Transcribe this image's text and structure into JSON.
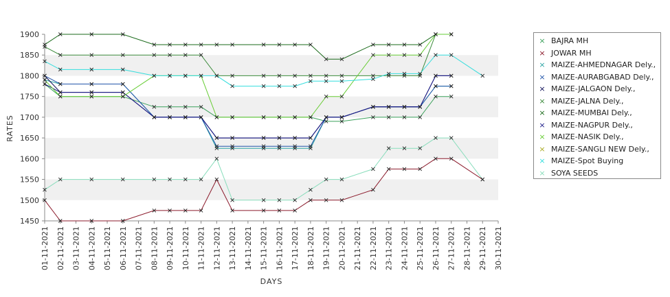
{
  "chart_data": {
    "type": "line",
    "xlabel": "DAYS",
    "ylabel": "RATES",
    "ylim": [
      1450,
      1900
    ],
    "yticks": [
      1450,
      1500,
      1550,
      1600,
      1650,
      1700,
      1750,
      1800,
      1850,
      1900
    ],
    "grid": "alternating horizontal bands",
    "legend_position": "right",
    "marker": "x",
    "categories": [
      "01-11-2021",
      "02-11-2021",
      "03-11-2021",
      "04-11-2021",
      "05-11-2021",
      "06-11-2021",
      "07-11-2021",
      "08-11-2021",
      "09-11-2021",
      "10-11-2021",
      "11-11-2021",
      "12-11-2021",
      "13-11-2021",
      "14-11-2021",
      "15-11-2021",
      "16-11-2021",
      "17-11-2021",
      "18-11-2021",
      "19-11-2021",
      "20-11-2021",
      "21-11-2021",
      "22-11-2021",
      "23-11-2021",
      "24-11-2021",
      "25-11-2021",
      "26-11-2021",
      "27-11-2021",
      "28-11-2021",
      "29-11-2021",
      "30-11-2021"
    ],
    "series": [
      {
        "name": "BAJRA MH",
        "color": "#3aa05a",
        "values": [
          1780,
          1750,
          null,
          1750,
          null,
          1750,
          null,
          1725,
          1725,
          1725,
          1725,
          1700,
          1700,
          null,
          1700,
          1700,
          1700,
          1700,
          1690,
          1690,
          null,
          1700,
          1700,
          1700,
          1700,
          1750,
          1750,
          null,
          null,
          null
        ]
      },
      {
        "name": "JOWAR MH",
        "color": "#8b1a2b",
        "values": [
          1500,
          1450,
          null,
          1450,
          null,
          1450,
          null,
          1475,
          1475,
          1475,
          1475,
          1550,
          1475,
          null,
          1475,
          1475,
          1475,
          1500,
          1500,
          1500,
          null,
          1525,
          1575,
          1575,
          1575,
          1600,
          1600,
          null,
          1550,
          null
        ]
      },
      {
        "name": "MAIZE-AHMEDNAGAR Dely.,",
        "color": "#2aa3a3",
        "values": [
          1790,
          1780,
          null,
          1780,
          null,
          1780,
          null,
          1700,
          1700,
          1700,
          1700,
          1625,
          1625,
          null,
          1625,
          1625,
          1625,
          1625,
          1700,
          1700,
          null,
          1725,
          1725,
          1725,
          1725,
          1775,
          1775,
          null,
          null,
          null
        ]
      },
      {
        "name": "MAIZE-AURABGABAD Dely.,",
        "color": "#2255aa",
        "values": [
          1800,
          1780,
          null,
          1780,
          null,
          1780,
          null,
          1700,
          1700,
          1700,
          1700,
          1630,
          1630,
          null,
          1630,
          1630,
          1630,
          1630,
          1700,
          1700,
          null,
          1725,
          1725,
          1725,
          1725,
          1775,
          1775,
          null,
          null,
          null
        ]
      },
      {
        "name": "MAIZE-JALGAON Dely.,",
        "color": "#0a0a55",
        "values": [
          1800,
          1760,
          null,
          1760,
          null,
          1760,
          null,
          1700,
          1700,
          1700,
          1700,
          1650,
          1650,
          null,
          1650,
          1650,
          1650,
          1650,
          1700,
          1700,
          null,
          1725,
          1725,
          1725,
          1725,
          1800,
          1800,
          null,
          null,
          null
        ]
      },
      {
        "name": "MAIZE-JALNA Dely.,",
        "color": "#3a8a3a",
        "values": [
          1870,
          1850,
          null,
          1850,
          null,
          1850,
          null,
          1850,
          1850,
          1850,
          1850,
          1800,
          1800,
          null,
          1800,
          1800,
          1800,
          1800,
          1800,
          1800,
          null,
          1800,
          1800,
          1800,
          1800,
          1900,
          1900,
          null,
          null,
          null
        ]
      },
      {
        "name": "MAIZE-MUMBAI Dely.,",
        "color": "#1a6a1a",
        "values": [
          1875,
          1900,
          null,
          1900,
          null,
          1900,
          null,
          1875,
          1875,
          1875,
          1875,
          1875,
          1875,
          null,
          1875,
          1875,
          1875,
          1875,
          1840,
          1840,
          null,
          1875,
          1875,
          1875,
          1875,
          1900,
          null,
          null,
          null,
          null
        ]
      },
      {
        "name": "MAIZE-NAGPUR Dely.,",
        "color": "#1a1a88",
        "values": [
          1780,
          1760,
          null,
          1760,
          null,
          1760,
          null,
          1700,
          1700,
          1700,
          1700,
          1650,
          1650,
          null,
          1650,
          1650,
          1650,
          1650,
          1700,
          1700,
          null,
          1725,
          1725,
          1725,
          1725,
          1800,
          1800,
          null,
          null,
          null
        ]
      },
      {
        "name": "MAIZE-NASIK Dely.,",
        "color": "#66cc33",
        "values": [
          1790,
          1750,
          null,
          1750,
          null,
          1750,
          null,
          1800,
          1800,
          1800,
          1800,
          1700,
          1700,
          null,
          1700,
          1700,
          1700,
          1700,
          1750,
          1750,
          null,
          1850,
          1850,
          1850,
          1850,
          1900,
          1900,
          null,
          null,
          null
        ]
      },
      {
        "name": "MAIZE-SANGLI NEW Dely.,",
        "color": "#aaaa22",
        "values": [
          null,
          null,
          null,
          null,
          null,
          null,
          null,
          null,
          null,
          null,
          null,
          null,
          null,
          null,
          null,
          null,
          null,
          null,
          null,
          null,
          null,
          null,
          null,
          null,
          null,
          null,
          null,
          null,
          null,
          null
        ]
      },
      {
        "name": "MAIZE-Spot Buying",
        "color": "#33dddd",
        "values": [
          1835,
          1815,
          null,
          1815,
          null,
          1815,
          null,
          1800,
          1800,
          1800,
          1800,
          1800,
          1775,
          null,
          1775,
          1775,
          1775,
          1787,
          1787,
          1787,
          null,
          1792,
          1805,
          1805,
          1805,
          1850,
          1850,
          null,
          1800,
          null
        ]
      },
      {
        "name": "SOYA SEEDS",
        "color": "#88ddbb",
        "values": [
          1525,
          1550,
          null,
          1550,
          null,
          1550,
          null,
          1550,
          1550,
          1550,
          1550,
          1600,
          1500,
          null,
          1500,
          1500,
          1500,
          1525,
          1550,
          1550,
          null,
          1575,
          1625,
          1625,
          1625,
          1650,
          1650,
          null,
          1550,
          null
        ]
      }
    ]
  }
}
